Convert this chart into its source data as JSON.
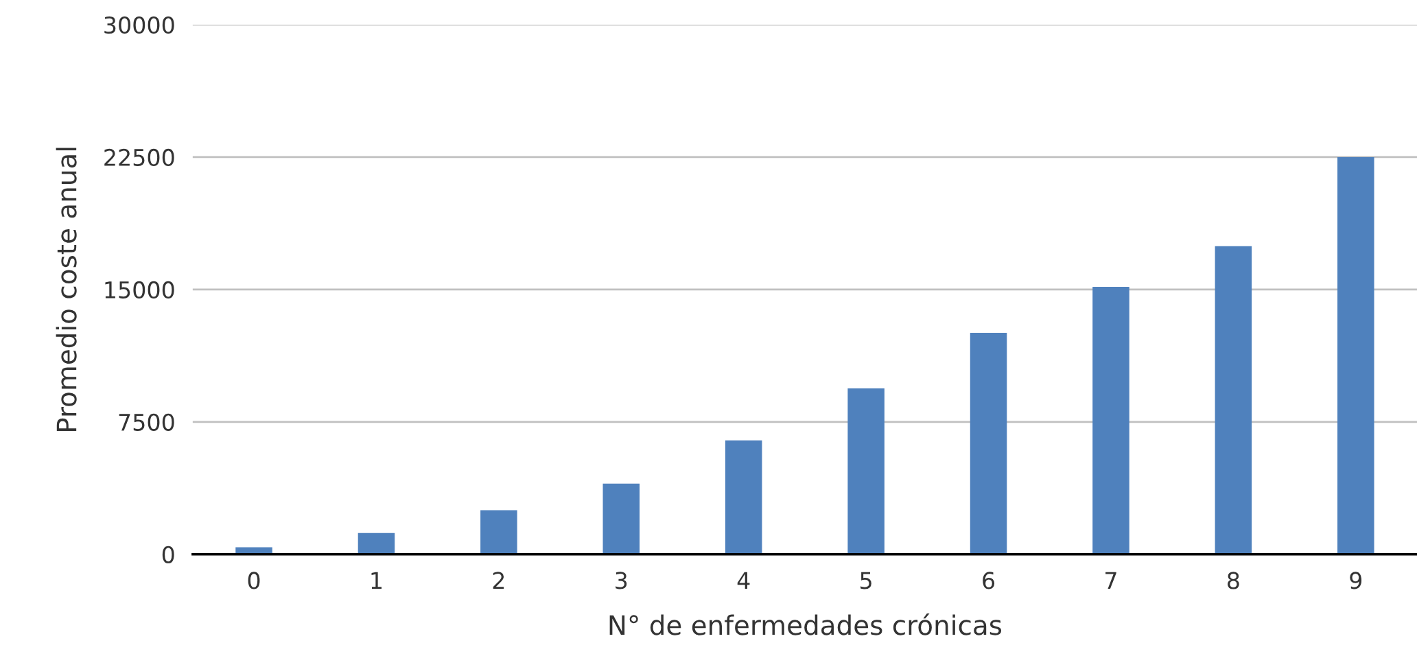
{
  "chart_data": {
    "type": "bar",
    "xlabel": "N° de enfermedades crónicas",
    "ylabel": "Promedio coste anual",
    "categories": [
      "0",
      "1",
      "2",
      "3",
      "4",
      "5",
      "6",
      "7",
      "8",
      "9"
    ],
    "values": [
      400,
      1200,
      2500,
      4000,
      6450,
      9400,
      12550,
      15150,
      17450,
      22500
    ],
    "color": "#4f81bd",
    "ylim": [
      0,
      30000
    ],
    "yticks": [
      0,
      7500,
      15000,
      22500,
      30000
    ],
    "grid": "y",
    "legend": false
  }
}
